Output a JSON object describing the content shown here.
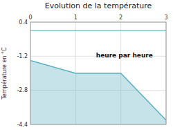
{
  "chart_data": {
    "type": "area",
    "title": "Evolution de la température",
    "y_label": "Température en °C",
    "x": [
      0,
      1,
      2,
      3
    ],
    "values": [
      -1.4,
      -2.0,
      -2.0,
      -4.2
    ],
    "color": "#5aafc0",
    "xlim": [
      0,
      3
    ],
    "ylim": [
      -4.4,
      0.4
    ],
    "xticks": [
      0,
      1,
      2,
      3
    ],
    "yticks": [
      0.4,
      -1.2,
      -2.8,
      -4.4
    ],
    "zero_line": 0.0,
    "grid": true,
    "annotations": [
      {
        "text": "heure par heure",
        "x": 1.45,
        "y": -1.05
      }
    ]
  }
}
